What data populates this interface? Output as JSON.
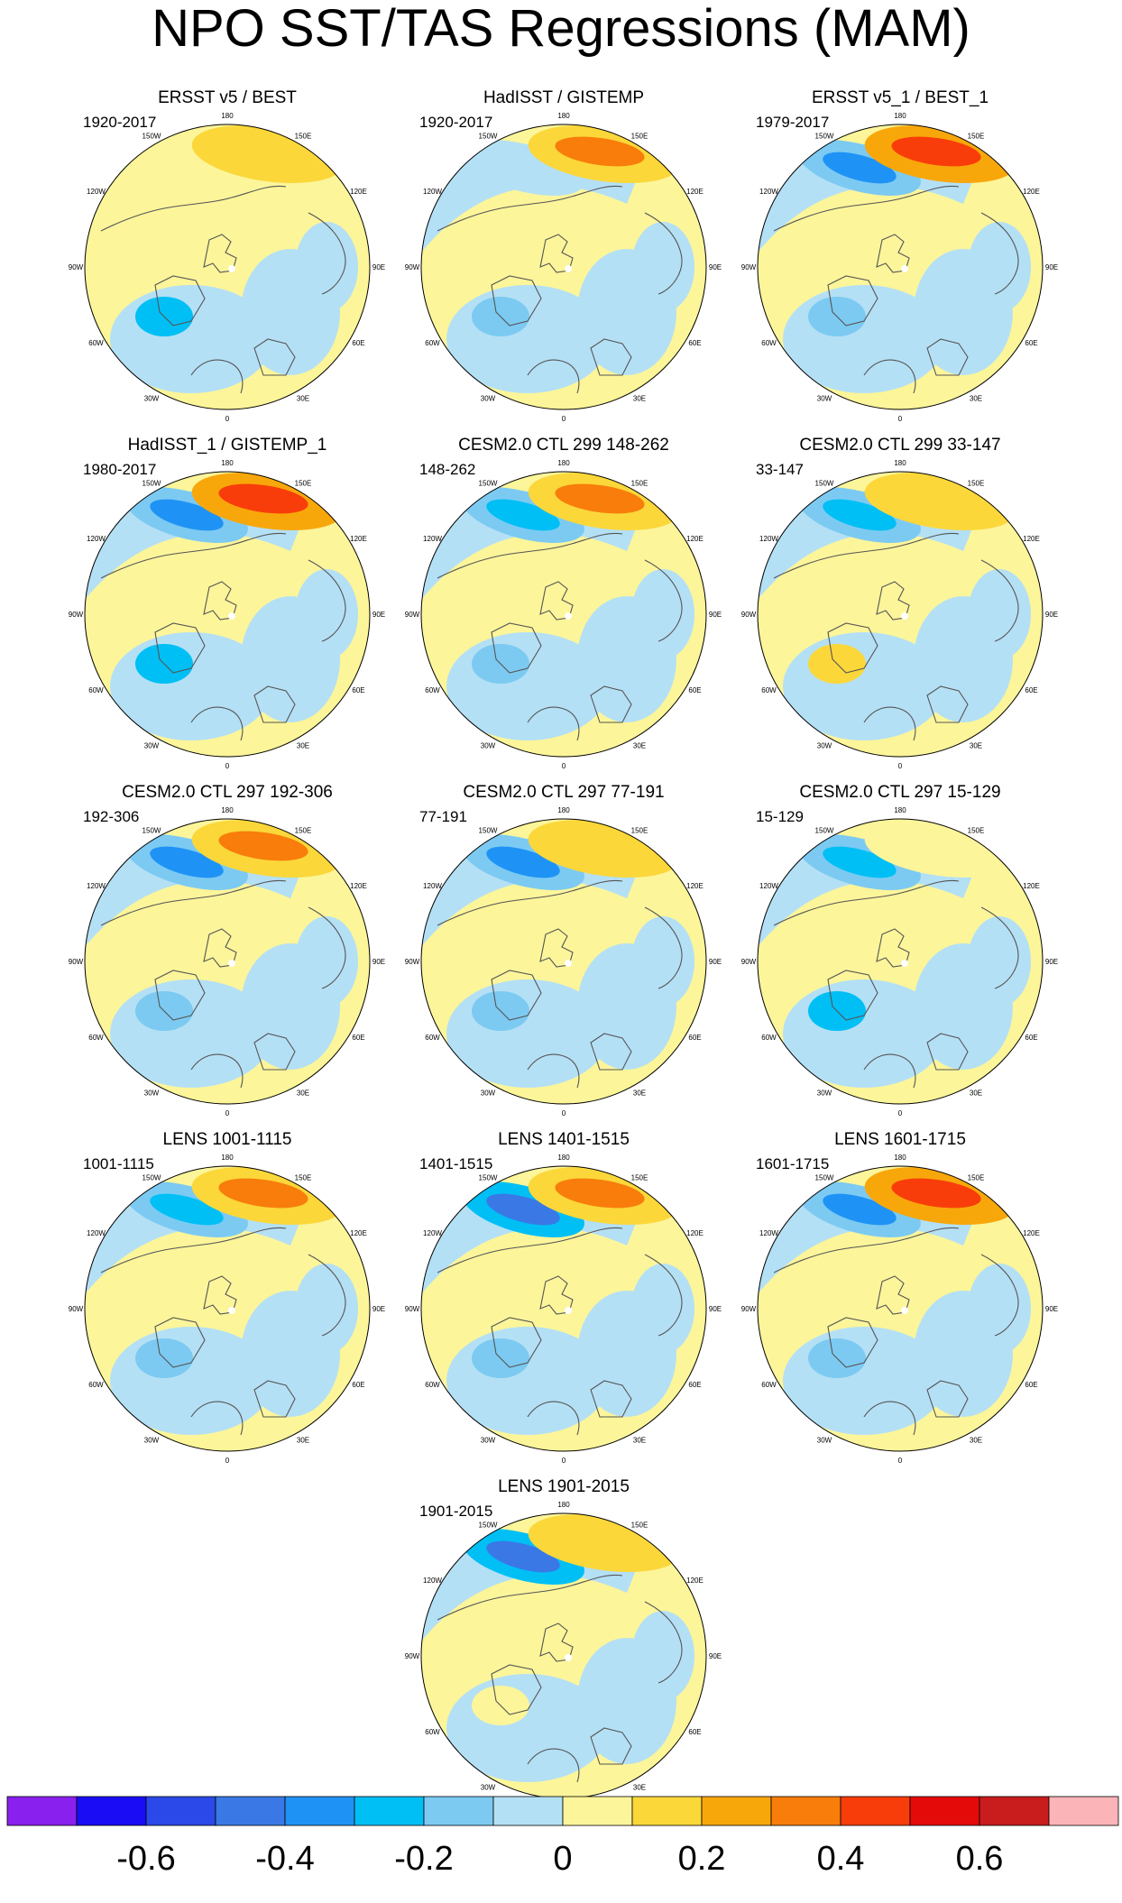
{
  "title": "NPO SST/TAS Regressions (MAM)",
  "panels": [
    {
      "title": "ERSST v5 / BEST",
      "period": "1920-2017"
    },
    {
      "title": "HadISST / GISTEMP",
      "period": "1920-2017"
    },
    {
      "title": "ERSST v5_1 / BEST_1",
      "period": "1979-2017"
    },
    {
      "title": "HadISST_1 / GISTEMP_1",
      "period": "1980-2017"
    },
    {
      "title": "CESM2.0 CTL 299 148-262",
      "period": "148-262"
    },
    {
      "title": "CESM2.0 CTL 299 33-147",
      "period": "33-147"
    },
    {
      "title": "CESM2.0 CTL 297 192-306",
      "period": "192-306"
    },
    {
      "title": "CESM2.0 CTL 297 77-191",
      "period": "77-191"
    },
    {
      "title": "CESM2.0 CTL 297 15-129",
      "period": "15-129"
    },
    {
      "title": "LENS 1001-1115",
      "period": "1001-1115"
    },
    {
      "title": "LENS 1401-1515",
      "period": "1401-1515"
    },
    {
      "title": "LENS 1601-1715",
      "period": "1601-1715"
    },
    {
      "title": "LENS 1901-2015",
      "period": "1901-2015"
    }
  ],
  "map_labels": {
    "lon_180": "180",
    "lon_150e": "150E",
    "lon_120e": "120E",
    "lon_90e": "90E",
    "lon_60e": "60E",
    "lon_30e": "30E",
    "lon_0": "0",
    "lon_30w": "30W",
    "lon_60w": "60W",
    "lon_90w": "90W",
    "lon_120w": "120W",
    "lon_150w": "150W"
  },
  "colorbar": {
    "colors": [
      "#8a20ee",
      "#1a0cf5",
      "#2a49e8",
      "#3a78e6",
      "#1f93f5",
      "#00bff5",
      "#7ccaf2",
      "#b4e0f5",
      "#fcf59a",
      "#fbd73a",
      "#f8a70b",
      "#f87d0b",
      "#f83d0a",
      "#e50a0a",
      "#c91c1c",
      "#fbb4b8"
    ],
    "labels": [
      "-0.6",
      "-0.4",
      "-0.2",
      "0",
      "0.2",
      "0.4",
      "0.6"
    ]
  },
  "chart_data": {
    "type": "heatmap",
    "projection": "north polar stereographic",
    "variable": "SST/TAS regression on NPO index",
    "season": "MAM",
    "contour_levels": [
      -0.7,
      -0.6,
      -0.5,
      -0.4,
      -0.3,
      -0.2,
      -0.1,
      0,
      0.1,
      0.2,
      0.3,
      0.4,
      0.5,
      0.6,
      0.7
    ],
    "colorbar_range": [
      -0.7,
      0.7
    ],
    "anomaly_features": [
      {
        "panel": "ERSST v5 / BEST",
        "north_pacific_positive": 0.2,
        "north_pacific_negative": 0.0,
        "north_atlantic": -0.2
      },
      {
        "panel": "HadISST / GISTEMP",
        "north_pacific_positive": 0.3,
        "north_pacific_negative": -0.1,
        "north_atlantic": -0.1
      },
      {
        "panel": "ERSST v5_1 / BEST_1",
        "north_pacific_positive": 0.4,
        "north_pacific_negative": -0.3,
        "north_atlantic": -0.1
      },
      {
        "panel": "HadISST_1 / GISTEMP_1",
        "north_pacific_positive": 0.4,
        "north_pacific_negative": -0.3,
        "north_atlantic": -0.2
      },
      {
        "panel": "CESM2.0 CTL 299 148-262",
        "north_pacific_positive": 0.3,
        "north_pacific_negative": -0.2,
        "north_atlantic": -0.1
      },
      {
        "panel": "CESM2.0 CTL 299 33-147",
        "north_pacific_positive": 0.2,
        "north_pacific_negative": -0.2,
        "north_atlantic": 0.2
      },
      {
        "panel": "CESM2.0 CTL 297 192-306",
        "north_pacific_positive": 0.3,
        "north_pacific_negative": -0.3,
        "north_atlantic": -0.1
      },
      {
        "panel": "CESM2.0 CTL 297 77-191",
        "north_pacific_positive": 0.2,
        "north_pacific_negative": -0.3,
        "north_atlantic": -0.1
      },
      {
        "panel": "CESM2.0 CTL 297 15-129",
        "north_pacific_positive": 0.1,
        "north_pacific_negative": -0.2,
        "north_atlantic": -0.2
      },
      {
        "panel": "LENS 1001-1115",
        "north_pacific_positive": 0.3,
        "north_pacific_negative": -0.2,
        "north_atlantic": -0.1
      },
      {
        "panel": "LENS 1401-1515",
        "north_pacific_positive": 0.3,
        "north_pacific_negative": -0.4,
        "north_atlantic": -0.1
      },
      {
        "panel": "LENS 1601-1715",
        "north_pacific_positive": 0.4,
        "north_pacific_negative": -0.3,
        "north_atlantic": -0.1
      },
      {
        "panel": "LENS 1901-2015",
        "north_pacific_positive": 0.2,
        "north_pacific_negative": -0.4,
        "north_atlantic": 0.1
      }
    ]
  }
}
